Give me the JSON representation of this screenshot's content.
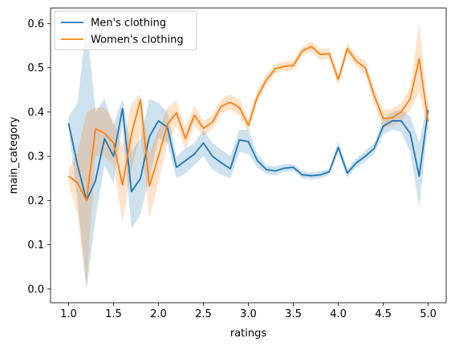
{
  "chart_data": {
    "type": "line",
    "xlabel": "ratings",
    "ylabel": "main_category",
    "xlim": [
      0.8,
      5.2
    ],
    "ylim": [
      -0.031,
      0.635
    ],
    "xticks": [
      1.0,
      1.5,
      2.0,
      2.5,
      3.0,
      3.5,
      4.0,
      4.5,
      5.0
    ],
    "xtick_labels": [
      "1.0",
      "1.5",
      "2.0",
      "2.5",
      "3.0",
      "3.5",
      "4.0",
      "4.5",
      "5.0"
    ],
    "yticks": [
      0.0,
      0.1,
      0.2,
      0.3,
      0.4,
      0.5,
      0.6
    ],
    "ytick_labels": [
      "0.0",
      "0.1",
      "0.2",
      "0.3",
      "0.4",
      "0.5",
      "0.6"
    ],
    "grid": false,
    "legend_position": "top-left",
    "x": [
      1.0,
      1.1,
      1.2,
      1.3,
      1.4,
      1.5,
      1.6,
      1.7,
      1.8,
      1.9,
      2.0,
      2.1,
      2.2,
      2.3,
      2.4,
      2.5,
      2.6,
      2.7,
      2.8,
      2.9,
      3.0,
      3.1,
      3.2,
      3.3,
      3.4,
      3.5,
      3.6,
      3.7,
      3.8,
      3.9,
      4.0,
      4.1,
      4.2,
      4.3,
      4.4,
      4.5,
      4.6,
      4.7,
      4.8,
      4.9,
      5.0
    ],
    "series": [
      {
        "name": "Men's clothing",
        "color": "#1f77b4",
        "band_color": "#1f77b4",
        "values": [
          0.375,
          0.28,
          0.2,
          0.245,
          0.34,
          0.3,
          0.408,
          0.22,
          0.25,
          0.345,
          0.38,
          0.365,
          0.275,
          0.29,
          0.305,
          0.33,
          0.3,
          0.285,
          0.272,
          0.337,
          0.333,
          0.29,
          0.27,
          0.267,
          0.273,
          0.275,
          0.258,
          0.256,
          0.258,
          0.265,
          0.32,
          0.262,
          0.285,
          0.3,
          0.318,
          0.368,
          0.38,
          0.38,
          0.352,
          0.255,
          0.405
        ],
        "lower": [
          0.36,
          0.2,
          0.0,
          0.16,
          0.28,
          0.24,
          0.37,
          0.135,
          0.17,
          0.25,
          0.34,
          0.33,
          0.25,
          0.262,
          0.28,
          0.3,
          0.27,
          0.258,
          0.25,
          0.31,
          0.305,
          0.275,
          0.26,
          0.257,
          0.265,
          0.267,
          0.25,
          0.248,
          0.25,
          0.258,
          0.307,
          0.252,
          0.275,
          0.288,
          0.305,
          0.35,
          0.36,
          0.355,
          0.31,
          0.185,
          0.375
        ],
        "upper": [
          0.39,
          0.42,
          0.6,
          0.4,
          0.43,
          0.37,
          0.43,
          0.31,
          0.34,
          0.43,
          0.42,
          0.4,
          0.3,
          0.318,
          0.33,
          0.36,
          0.33,
          0.315,
          0.3,
          0.36,
          0.36,
          0.305,
          0.28,
          0.277,
          0.282,
          0.283,
          0.266,
          0.264,
          0.266,
          0.272,
          0.333,
          0.272,
          0.295,
          0.312,
          0.33,
          0.385,
          0.4,
          0.405,
          0.39,
          0.33,
          0.43
        ]
      },
      {
        "name": "Women's clothing",
        "color": "#ff7f0e",
        "band_color": "#ff7f0e",
        "values": [
          0.255,
          0.24,
          0.2,
          0.362,
          0.352,
          0.33,
          0.235,
          0.35,
          0.428,
          0.233,
          0.3,
          0.372,
          0.398,
          0.34,
          0.393,
          0.363,
          0.377,
          0.413,
          0.422,
          0.41,
          0.37,
          0.435,
          0.472,
          0.498,
          0.503,
          0.505,
          0.538,
          0.548,
          0.53,
          0.532,
          0.473,
          0.543,
          0.515,
          0.5,
          0.437,
          0.385,
          0.387,
          0.4,
          0.43,
          0.52,
          0.378
        ],
        "lower": [
          0.24,
          0.17,
          0.0,
          0.3,
          0.3,
          0.28,
          0.15,
          0.27,
          0.35,
          0.16,
          0.24,
          0.33,
          0.37,
          0.315,
          0.37,
          0.345,
          0.362,
          0.397,
          0.405,
          0.392,
          0.355,
          0.422,
          0.46,
          0.488,
          0.492,
          0.494,
          0.528,
          0.536,
          0.518,
          0.52,
          0.46,
          0.53,
          0.502,
          0.485,
          0.42,
          0.365,
          0.368,
          0.38,
          0.405,
          0.445,
          0.35
        ],
        "upper": [
          0.27,
          0.31,
          0.4,
          0.41,
          0.41,
          0.38,
          0.32,
          0.42,
          0.44,
          0.31,
          0.36,
          0.41,
          0.425,
          0.365,
          0.415,
          0.38,
          0.392,
          0.43,
          0.44,
          0.428,
          0.385,
          0.448,
          0.484,
          0.508,
          0.514,
          0.516,
          0.548,
          0.56,
          0.542,
          0.544,
          0.486,
          0.556,
          0.528,
          0.515,
          0.454,
          0.405,
          0.407,
          0.42,
          0.455,
          0.6,
          0.405
        ]
      }
    ]
  }
}
